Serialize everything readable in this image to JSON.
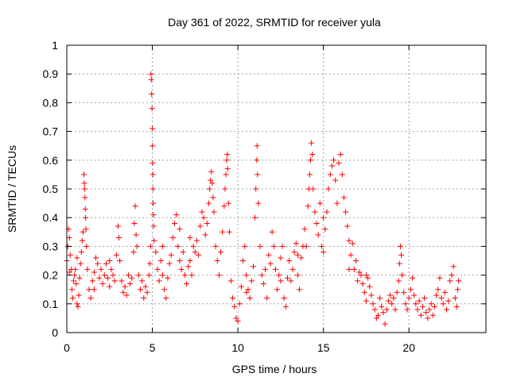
{
  "chart_data": {
    "type": "scatter",
    "title": "Day 361 of 2022, SRMTID for receiver yula",
    "xlabel": "GPS time / hours",
    "ylabel": "SRMTID / TECUs",
    "xlim": [
      0,
      24.5
    ],
    "ylim": [
      0,
      1
    ],
    "xticks": [
      0,
      5,
      10,
      15,
      20
    ],
    "xtick_labels": [
      "0",
      "5",
      "10",
      "15",
      "20"
    ],
    "yticks": [
      0,
      0.1,
      0.2,
      0.3,
      0.4,
      0.5,
      0.6,
      0.7,
      0.8,
      0.9,
      1
    ],
    "ytick_labels": [
      "0",
      "0.1",
      "0.2",
      "0.3",
      "0.4",
      "0.5",
      "0.6",
      "0.7",
      "0.8",
      "0.9",
      "1"
    ],
    "grid": true,
    "marker": "+",
    "marker_color": "#ff0000",
    "series": [
      {
        "name": "SRMTID",
        "points": [
          [
            0.0,
            0.25
          ],
          [
            0.05,
            0.3
          ],
          [
            0.1,
            0.36
          ],
          [
            0.15,
            0.33
          ],
          [
            0.2,
            0.27
          ],
          [
            0.25,
            0.22
          ],
          [
            0.3,
            0.15
          ],
          [
            0.35,
            0.12
          ],
          [
            0.4,
            0.18
          ],
          [
            0.45,
            0.2
          ],
          [
            0.5,
            0.22
          ],
          [
            0.55,
            0.17
          ],
          [
            0.6,
            0.1
          ],
          [
            0.65,
            0.09
          ],
          [
            0.7,
            0.13
          ],
          [
            0.75,
            0.19
          ],
          [
            0.8,
            0.24
          ],
          [
            0.85,
            0.28
          ],
          [
            0.9,
            0.32
          ],
          [
            0.95,
            0.35
          ],
          [
            1.0,
            0.55
          ],
          [
            1.02,
            0.52
          ],
          [
            1.04,
            0.5
          ],
          [
            1.06,
            0.47
          ],
          [
            1.08,
            0.43
          ],
          [
            1.1,
            0.4
          ],
          [
            1.12,
            0.36
          ],
          [
            1.15,
            0.3
          ],
          [
            1.2,
            0.22
          ],
          [
            1.3,
            0.15
          ],
          [
            1.4,
            0.12
          ],
          [
            1.5,
            0.18
          ],
          [
            1.6,
            0.21
          ],
          [
            1.7,
            0.26
          ],
          [
            1.8,
            0.24
          ],
          [
            1.9,
            0.19
          ],
          [
            2.0,
            0.22
          ],
          [
            2.1,
            0.17
          ],
          [
            2.2,
            0.2
          ],
          [
            2.3,
            0.24
          ],
          [
            2.4,
            0.19
          ],
          [
            2.5,
            0.16
          ],
          [
            2.6,
            0.22
          ],
          [
            2.7,
            0.2
          ],
          [
            2.8,
            0.18
          ],
          [
            2.9,
            0.27
          ],
          [
            3.0,
            0.37
          ],
          [
            3.05,
            0.33
          ],
          [
            3.1,
            0.25
          ],
          [
            3.2,
            0.18
          ],
          [
            3.3,
            0.14
          ],
          [
            3.4,
            0.16
          ],
          [
            3.5,
            0.13
          ],
          [
            3.6,
            0.2
          ],
          [
            3.7,
            0.17
          ],
          [
            3.8,
            0.19
          ],
          [
            3.9,
            0.28
          ],
          [
            3.95,
            0.38
          ],
          [
            4.0,
            0.44
          ],
          [
            4.05,
            0.34
          ],
          [
            4.1,
            0.3
          ],
          [
            4.2,
            0.2
          ],
          [
            4.3,
            0.15
          ],
          [
            4.4,
            0.18
          ],
          [
            4.5,
            0.12
          ],
          [
            4.6,
            0.16
          ],
          [
            4.7,
            0.14
          ],
          [
            4.8,
            0.2
          ],
          [
            4.85,
            0.24
          ],
          [
            4.9,
            0.3
          ],
          [
            4.92,
            0.9
          ],
          [
            4.94,
            0.88
          ],
          [
            4.96,
            0.83
          ],
          [
            4.98,
            0.78
          ],
          [
            5.0,
            0.71
          ],
          [
            5.01,
            0.65
          ],
          [
            5.02,
            0.59
          ],
          [
            5.03,
            0.55
          ],
          [
            5.04,
            0.5
          ],
          [
            5.05,
            0.45
          ],
          [
            5.06,
            0.41
          ],
          [
            5.08,
            0.37
          ],
          [
            5.1,
            0.32
          ],
          [
            5.2,
            0.28
          ],
          [
            5.3,
            0.22
          ],
          [
            5.4,
            0.18
          ],
          [
            5.5,
            0.25
          ],
          [
            5.6,
            0.2
          ],
          [
            5.7,
            0.15
          ],
          [
            5.8,
            0.12
          ],
          [
            5.9,
            0.19
          ],
          [
            6.0,
            0.24
          ],
          [
            6.1,
            0.27
          ],
          [
            6.2,
            0.33
          ],
          [
            6.3,
            0.38
          ],
          [
            6.4,
            0.41
          ],
          [
            6.5,
            0.3
          ],
          [
            6.6,
            0.25
          ],
          [
            6.7,
            0.22
          ],
          [
            6.8,
            0.28
          ],
          [
            6.9,
            0.2
          ],
          [
            7.0,
            0.17
          ],
          [
            7.1,
            0.23
          ],
          [
            7.2,
            0.25
          ],
          [
            7.3,
            0.2
          ],
          [
            7.4,
            0.3
          ],
          [
            7.5,
            0.28
          ],
          [
            7.6,
            0.32
          ],
          [
            7.7,
            0.27
          ],
          [
            7.8,
            0.37
          ],
          [
            7.9,
            0.42
          ],
          [
            8.0,
            0.4
          ],
          [
            8.1,
            0.34
          ],
          [
            8.2,
            0.38
          ],
          [
            8.3,
            0.45
          ],
          [
            8.35,
            0.5
          ],
          [
            8.4,
            0.53
          ],
          [
            8.45,
            0.56
          ],
          [
            8.5,
            0.52
          ],
          [
            8.55,
            0.47
          ],
          [
            8.6,
            0.42
          ],
          [
            8.7,
            0.3
          ],
          [
            8.8,
            0.25
          ],
          [
            8.9,
            0.2
          ],
          [
            9.0,
            0.28
          ],
          [
            9.1,
            0.35
          ],
          [
            9.2,
            0.44
          ],
          [
            9.25,
            0.5
          ],
          [
            9.3,
            0.55
          ],
          [
            9.35,
            0.6
          ],
          [
            9.38,
            0.62
          ],
          [
            9.4,
            0.57
          ],
          [
            9.45,
            0.45
          ],
          [
            9.5,
            0.35
          ],
          [
            9.6,
            0.18
          ],
          [
            9.7,
            0.12
          ],
          [
            9.8,
            0.09
          ],
          [
            9.9,
            0.05
          ],
          [
            10.0,
            0.04
          ],
          [
            10.1,
            0.1
          ],
          [
            10.2,
            0.16
          ],
          [
            10.3,
            0.25
          ],
          [
            10.4,
            0.3
          ],
          [
            10.5,
            0.2
          ],
          [
            10.6,
            0.15
          ],
          [
            10.7,
            0.12
          ],
          [
            10.8,
            0.18
          ],
          [
            10.9,
            0.23
          ],
          [
            11.0,
            0.4
          ],
          [
            11.05,
            0.5
          ],
          [
            11.1,
            0.6
          ],
          [
            11.12,
            0.65
          ],
          [
            11.15,
            0.55
          ],
          [
            11.2,
            0.45
          ],
          [
            11.3,
            0.3
          ],
          [
            11.4,
            0.2
          ],
          [
            11.5,
            0.17
          ],
          [
            11.6,
            0.22
          ],
          [
            11.7,
            0.12
          ],
          [
            11.8,
            0.27
          ],
          [
            11.9,
            0.24
          ],
          [
            12.0,
            0.35
          ],
          [
            12.1,
            0.3
          ],
          [
            12.2,
            0.22
          ],
          [
            12.3,
            0.15
          ],
          [
            12.4,
            0.2
          ],
          [
            12.5,
            0.26
          ],
          [
            12.6,
            0.3
          ],
          [
            12.7,
            0.12
          ],
          [
            12.8,
            0.09
          ],
          [
            12.9,
            0.19
          ],
          [
            13.0,
            0.25
          ],
          [
            13.1,
            0.18
          ],
          [
            13.2,
            0.22
          ],
          [
            13.3,
            0.28
          ],
          [
            13.4,
            0.31
          ],
          [
            13.5,
            0.2
          ],
          [
            13.6,
            0.15
          ],
          [
            13.7,
            0.26
          ],
          [
            13.8,
            0.3
          ],
          [
            13.9,
            0.36
          ],
          [
            14.0,
            0.3
          ],
          [
            14.1,
            0.44
          ],
          [
            14.15,
            0.5
          ],
          [
            14.2,
            0.55
          ],
          [
            14.25,
            0.6
          ],
          [
            14.3,
            0.66
          ],
          [
            14.35,
            0.62
          ],
          [
            14.4,
            0.5
          ],
          [
            14.5,
            0.42
          ],
          [
            14.6,
            0.38
          ],
          [
            14.7,
            0.34
          ],
          [
            14.8,
            0.45
          ],
          [
            14.9,
            0.3
          ],
          [
            15.0,
            0.28
          ],
          [
            15.1,
            0.36
          ],
          [
            15.2,
            0.42
          ],
          [
            15.3,
            0.5
          ],
          [
            15.4,
            0.55
          ],
          [
            15.5,
            0.58
          ],
          [
            15.6,
            0.6
          ],
          [
            15.7,
            0.53
          ],
          [
            15.8,
            0.45
          ],
          [
            15.9,
            0.59
          ],
          [
            16.0,
            0.62
          ],
          [
            16.1,
            0.55
          ],
          [
            16.2,
            0.47
          ],
          [
            16.3,
            0.42
          ],
          [
            16.4,
            0.37
          ],
          [
            16.5,
            0.32
          ],
          [
            16.6,
            0.27
          ],
          [
            16.7,
            0.31
          ],
          [
            16.8,
            0.22
          ],
          [
            16.9,
            0.25
          ],
          [
            17.0,
            0.18
          ],
          [
            17.1,
            0.21
          ],
          [
            17.2,
            0.2
          ],
          [
            17.3,
            0.17
          ],
          [
            17.4,
            0.14
          ],
          [
            17.5,
            0.2
          ],
          [
            17.6,
            0.19
          ],
          [
            17.7,
            0.16
          ],
          [
            17.8,
            0.13
          ],
          [
            17.9,
            0.1
          ],
          [
            18.0,
            0.08
          ],
          [
            18.1,
            0.05
          ],
          [
            18.2,
            0.06
          ],
          [
            18.3,
            0.12
          ],
          [
            18.4,
            0.09
          ],
          [
            18.5,
            0.07
          ],
          [
            18.6,
            0.03
          ],
          [
            18.7,
            0.08
          ],
          [
            18.8,
            0.11
          ],
          [
            18.9,
            0.13
          ],
          [
            19.0,
            0.1
          ],
          [
            19.1,
            0.12
          ],
          [
            19.2,
            0.08
          ],
          [
            19.3,
            0.14
          ],
          [
            19.4,
            0.18
          ],
          [
            19.45,
            0.24
          ],
          [
            19.5,
            0.3
          ],
          [
            19.55,
            0.27
          ],
          [
            19.6,
            0.2
          ],
          [
            19.7,
            0.14
          ],
          [
            19.8,
            0.1
          ],
          [
            19.9,
            0.08
          ],
          [
            20.0,
            0.12
          ],
          [
            20.1,
            0.15
          ],
          [
            20.2,
            0.19
          ],
          [
            20.3,
            0.13
          ],
          [
            20.4,
            0.1
          ],
          [
            20.5,
            0.08
          ],
          [
            20.6,
            0.11
          ],
          [
            20.7,
            0.06
          ],
          [
            20.8,
            0.09
          ],
          [
            20.9,
            0.12
          ],
          [
            21.0,
            0.07
          ],
          [
            21.1,
            0.05
          ],
          [
            21.2,
            0.08
          ],
          [
            21.3,
            0.1
          ],
          [
            21.4,
            0.06
          ],
          [
            21.5,
            0.09
          ],
          [
            21.6,
            0.13
          ],
          [
            21.7,
            0.15
          ],
          [
            21.8,
            0.19
          ],
          [
            21.9,
            0.12
          ],
          [
            22.0,
            0.1
          ],
          [
            22.1,
            0.14
          ],
          [
            22.2,
            0.08
          ],
          [
            22.3,
            0.11
          ],
          [
            22.4,
            0.18
          ],
          [
            22.5,
            0.2
          ],
          [
            22.6,
            0.23
          ],
          [
            22.7,
            0.12
          ],
          [
            22.8,
            0.09
          ],
          [
            22.85,
            0.15
          ],
          [
            22.9,
            0.18
          ],
          [
            0.15,
            0.21
          ],
          [
            0.6,
            0.26
          ],
          [
            1.6,
            0.15
          ],
          [
            2.5,
            0.25
          ],
          [
            5.6,
            0.3
          ],
          [
            6.6,
            0.36
          ],
          [
            7.2,
            0.33
          ],
          [
            10.5,
            0.14
          ],
          [
            12.5,
            0.18
          ],
          [
            13.5,
            0.27
          ],
          [
            15.0,
            0.4
          ],
          [
            16.5,
            0.22
          ],
          [
            17.5,
            0.11
          ]
        ]
      }
    ]
  }
}
